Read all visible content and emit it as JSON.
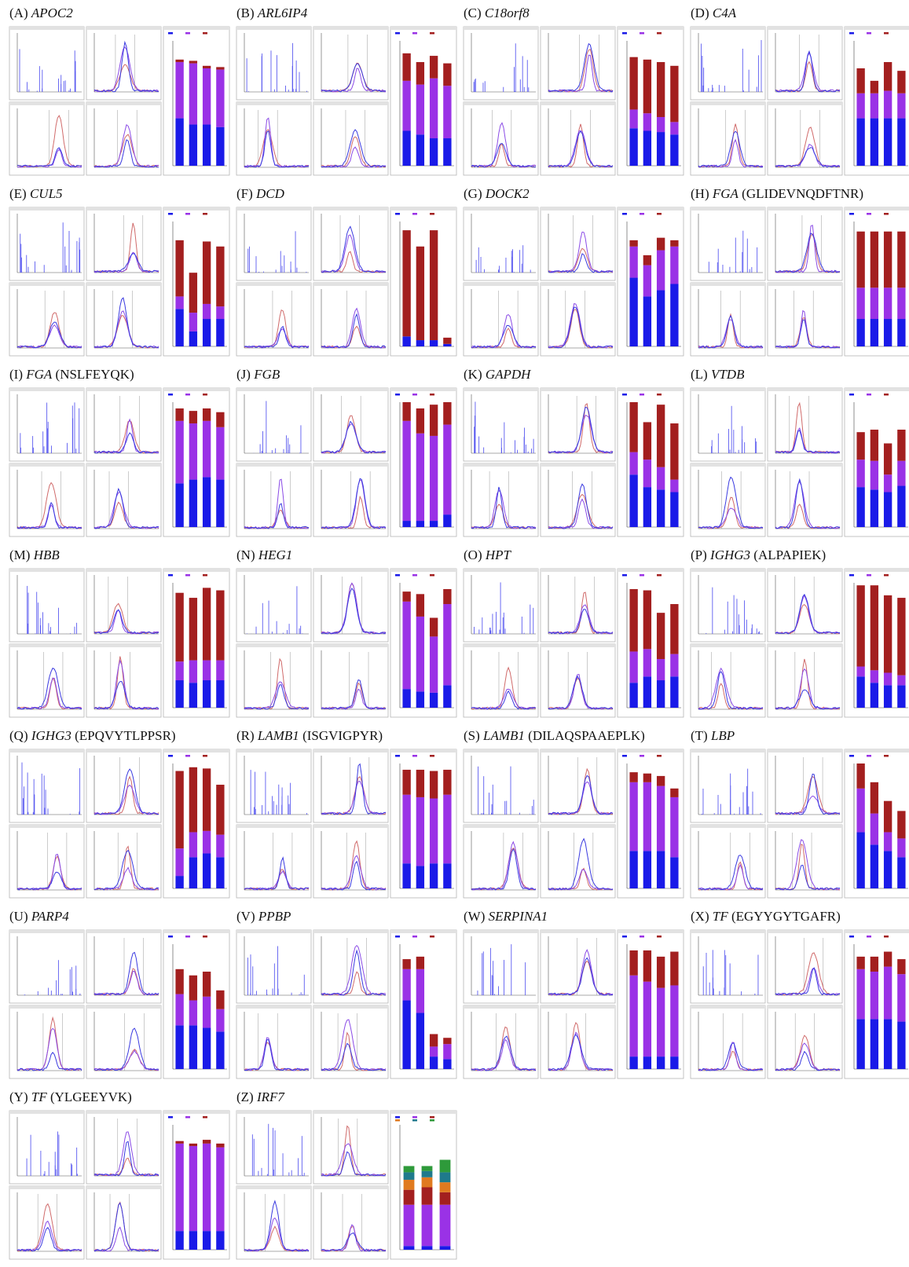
{
  "ylim": [
    0,
    100
  ],
  "segment_colors": [
    "#1a1ae8",
    "#9a32e6",
    "#a31f1f"
  ],
  "panels": [
    {
      "label": "(A)",
      "gene": "APOC2",
      "bars": [
        [
          38,
          45,
          2
        ],
        [
          33,
          49,
          2
        ],
        [
          33,
          45,
          2
        ],
        [
          31,
          46,
          2
        ]
      ]
    },
    {
      "label": "(B)",
      "gene": "ARL6IP4",
      "bars": [
        [
          28,
          40,
          22
        ],
        [
          25,
          40,
          18
        ],
        [
          22,
          48,
          18
        ],
        [
          22,
          42,
          18
        ]
      ]
    },
    {
      "label": "(C)",
      "gene": "C18orf8",
      "bars": [
        [
          30,
          15,
          42
        ],
        [
          28,
          14,
          43
        ],
        [
          27,
          12,
          44
        ],
        [
          25,
          10,
          45
        ]
      ]
    },
    {
      "label": "(D)",
      "gene": "C4A",
      "bars": [
        [
          38,
          20,
          20
        ],
        [
          38,
          20,
          10
        ],
        [
          38,
          22,
          23
        ],
        [
          38,
          20,
          18
        ]
      ]
    },
    {
      "label": "(E)",
      "gene": "CUL5",
      "bars": [
        [
          30,
          10,
          45
        ],
        [
          12,
          15,
          32
        ],
        [
          22,
          12,
          50
        ],
        [
          22,
          10,
          48
        ]
      ]
    },
    {
      "label": "(F)",
      "gene": "DCD",
      "bars": [
        [
          8,
          0,
          85
        ],
        [
          5,
          0,
          75
        ],
        [
          5,
          0,
          88
        ],
        [
          2,
          0,
          5
        ]
      ]
    },
    {
      "label": "(G)",
      "gene": "DOCK2",
      "bars": [
        [
          55,
          25,
          5
        ],
        [
          40,
          25,
          8
        ],
        [
          45,
          32,
          10
        ],
        [
          50,
          30,
          5
        ]
      ]
    },
    {
      "label": "(H)",
      "gene": "FGA",
      "peptide": "(GLIDEVNQDFTNR)",
      "bars": [
        [
          22,
          25,
          45
        ],
        [
          22,
          25,
          45
        ],
        [
          22,
          25,
          45
        ],
        [
          22,
          25,
          45
        ]
      ]
    },
    {
      "label": "(I)",
      "gene": "FGA",
      "peptide": "(NSLFEYQK)",
      "bars": [
        [
          35,
          50,
          10
        ],
        [
          38,
          45,
          10
        ],
        [
          40,
          45,
          10
        ],
        [
          38,
          42,
          12
        ]
      ]
    },
    {
      "label": "(J)",
      "gene": "FGB",
      "bars": [
        [
          5,
          80,
          15
        ],
        [
          5,
          70,
          20
        ],
        [
          5,
          68,
          25
        ],
        [
          10,
          72,
          18
        ]
      ]
    },
    {
      "label": "(K)",
      "gene": "GAPDH",
      "bars": [
        [
          42,
          18,
          40
        ],
        [
          32,
          22,
          30
        ],
        [
          30,
          18,
          50
        ],
        [
          28,
          10,
          45
        ]
      ]
    },
    {
      "label": "(L)",
      "gene": "VTDB",
      "bars": [
        [
          32,
          22,
          22
        ],
        [
          30,
          23,
          25
        ],
        [
          28,
          14,
          25
        ],
        [
          33,
          20,
          25
        ]
      ]
    },
    {
      "label": "(M)",
      "gene": "HBB",
      "bars": [
        [
          22,
          15,
          55
        ],
        [
          20,
          18,
          50
        ],
        [
          22,
          16,
          58
        ],
        [
          22,
          16,
          56
        ]
      ]
    },
    {
      "label": "(N)",
      "gene": "HEG1",
      "bars": [
        [
          15,
          70,
          8
        ],
        [
          13,
          60,
          18
        ],
        [
          12,
          45,
          15
        ],
        [
          18,
          65,
          12
        ]
      ]
    },
    {
      "label": "(O)",
      "gene": "HPT",
      "bars": [
        [
          20,
          25,
          50
        ],
        [
          25,
          22,
          47
        ],
        [
          22,
          17,
          37
        ],
        [
          25,
          18,
          40
        ]
      ]
    },
    {
      "label": "(P)",
      "gene": "IGHG3",
      "peptide": "(ALPAPIEK)",
      "bars": [
        [
          25,
          8,
          65
        ],
        [
          20,
          10,
          68
        ],
        [
          18,
          10,
          62
        ],
        [
          18,
          8,
          62
        ]
      ]
    },
    {
      "label": "(Q)",
      "gene": "IGHG3",
      "peptide": "(EPQVYTLPPSR)",
      "bars": [
        [
          10,
          22,
          62
        ],
        [
          25,
          20,
          52
        ],
        [
          28,
          18,
          50
        ],
        [
          25,
          18,
          40
        ]
      ]
    },
    {
      "label": "(R)",
      "gene": "LAMB1",
      "peptide": "(ISGVIGPYR)",
      "bars": [
        [
          20,
          55,
          20
        ],
        [
          18,
          55,
          22
        ],
        [
          20,
          52,
          22
        ],
        [
          20,
          55,
          20
        ]
      ]
    },
    {
      "label": "(S)",
      "gene": "LAMB1",
      "peptide": "(DILAQSPAAEPLK)",
      "bars": [
        [
          30,
          55,
          8
        ],
        [
          30,
          55,
          7
        ],
        [
          30,
          52,
          8
        ],
        [
          25,
          48,
          7
        ]
      ]
    },
    {
      "label": "(T)",
      "gene": "LBP",
      "bars": [
        [
          45,
          35,
          20
        ],
        [
          35,
          25,
          25
        ],
        [
          30,
          15,
          25
        ],
        [
          25,
          15,
          22
        ]
      ]
    },
    {
      "label": "(U)",
      "gene": "PARP4",
      "bars": [
        [
          35,
          25,
          20
        ],
        [
          35,
          20,
          20
        ],
        [
          33,
          25,
          20
        ],
        [
          30,
          18,
          15
        ]
      ]
    },
    {
      "label": "(V)",
      "gene": "PPBP",
      "bars": [
        [
          55,
          25,
          8
        ],
        [
          45,
          35,
          10
        ],
        [
          10,
          8,
          10
        ],
        [
          8,
          12,
          5
        ]
      ]
    },
    {
      "label": "(W)",
      "gene": "SERPINA1",
      "bars": [
        [
          10,
          65,
          20
        ],
        [
          10,
          60,
          25
        ],
        [
          10,
          55,
          25
        ],
        [
          10,
          57,
          27
        ]
      ]
    },
    {
      "label": "(X)",
      "gene": "TF",
      "peptide": "(EGYYGYTGAFR)",
      "bars": [
        [
          40,
          40,
          10
        ],
        [
          40,
          38,
          12
        ],
        [
          40,
          42,
          12
        ],
        [
          38,
          38,
          12
        ]
      ]
    },
    {
      "label": "(Y)",
      "gene": "TF",
      "peptide": "(YLGEEYVK)",
      "bars": [
        [
          15,
          70,
          2
        ],
        [
          15,
          68,
          2
        ],
        [
          15,
          70,
          3
        ],
        [
          15,
          67,
          3
        ]
      ]
    },
    {
      "label": "(Z)",
      "gene": "IRF7",
      "colors": [
        "#1a1ae8",
        "#9a32e6",
        "#a31f1f",
        "#e07a1f",
        "#1f7a8c",
        "#2e9a3a"
      ],
      "bars": [
        [
          3,
          33,
          12,
          8,
          6,
          5
        ],
        [
          3,
          33,
          14,
          8,
          5,
          4
        ],
        [
          3,
          33,
          10,
          8,
          8,
          10
        ]
      ]
    }
  ]
}
